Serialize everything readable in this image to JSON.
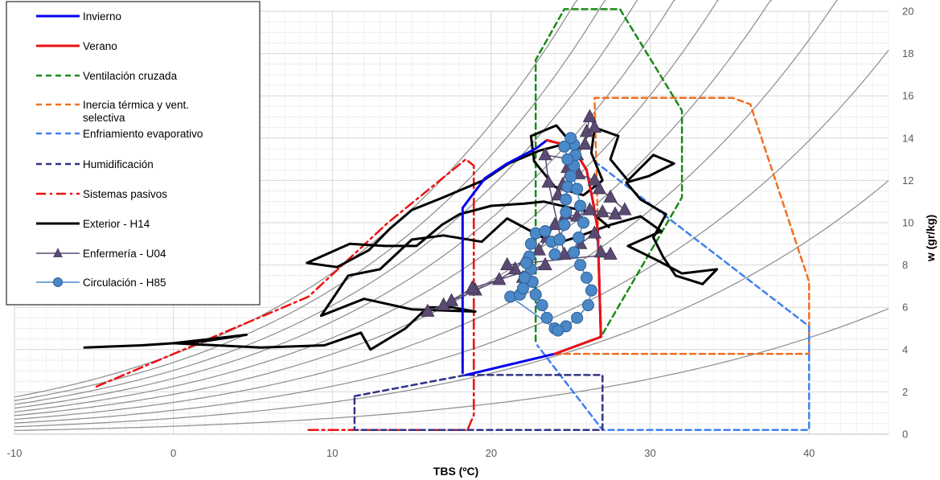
{
  "chart_data": {
    "type": "line",
    "title": "",
    "xlabel": "TBS (ºC)",
    "ylabel": "w (gr/kg)",
    "xlim": [
      -10,
      45
    ],
    "ylim": [
      0,
      20
    ],
    "x_ticks": [
      -10,
      0,
      10,
      20,
      30,
      40
    ],
    "y_ticks": [
      0,
      2,
      4,
      6,
      8,
      10,
      12,
      14,
      16,
      18,
      20
    ],
    "grid": true,
    "legend_position": "top-left",
    "saturation_curves_rh_percent": [
      10,
      20,
      30,
      40,
      50,
      60,
      70,
      80,
      90,
      100
    ],
    "series": [
      {
        "name": "Invierno",
        "color": "#0000ee",
        "style": "solid",
        "points": [
          [
            18.4,
            2.8
          ],
          [
            24,
            3.8
          ],
          [
            26.9,
            4.6
          ],
          [
            26.7,
            9.7
          ],
          [
            26.4,
            11
          ],
          [
            26,
            12.5
          ],
          [
            25.1,
            13.6
          ],
          [
            23.5,
            13.9
          ],
          [
            22.8,
            13.5
          ],
          [
            21,
            12.8
          ],
          [
            19.6,
            12.1
          ],
          [
            18.2,
            10.7
          ],
          [
            18.2,
            2.9
          ]
        ]
      },
      {
        "name": "Verano",
        "color": "#ee1111",
        "style": "solid",
        "points": [
          [
            24,
            3.8
          ],
          [
            26.9,
            4.6
          ],
          [
            26.7,
            9.7
          ],
          [
            26.4,
            11
          ],
          [
            26,
            12.5
          ],
          [
            25.1,
            13.6
          ],
          [
            23.5,
            13.9
          ]
        ]
      },
      {
        "name": "Ventilación cruzada",
        "color": "#1a8a1a",
        "style": "dashed",
        "points": [
          [
            22.8,
            4.4
          ],
          [
            22.8,
            17.7
          ],
          [
            24.6,
            20.1
          ],
          [
            28.1,
            20.1
          ],
          [
            32,
            15.3
          ],
          [
            32,
            11.2
          ],
          [
            26.9,
            4.6
          ]
        ]
      },
      {
        "name": "Inercia térmica y vent. selectiva",
        "color": "#f07020",
        "style": "dashed",
        "points": [
          [
            24,
            3.8
          ],
          [
            40,
            3.8
          ],
          [
            40,
            7.2
          ],
          [
            36.3,
            15.6
          ],
          [
            35.2,
            15.9
          ],
          [
            26.5,
            15.9
          ],
          [
            26.9,
            4.6
          ]
        ]
      },
      {
        "name": "Enfriamiento evaporativo",
        "color": "#4080ee",
        "style": "dashed",
        "points": [
          [
            26.5,
            12.9
          ],
          [
            40,
            5.1
          ],
          [
            40,
            0.2
          ],
          [
            27,
            0.2
          ],
          [
            22.9,
            4.2
          ]
        ]
      },
      {
        "name": "Humidificación",
        "color": "#333388",
        "style": "dashed",
        "points": [
          [
            11.4,
            1.8
          ],
          [
            18.4,
            2.8
          ],
          [
            27,
            2.8
          ],
          [
            27,
            0.2
          ],
          [
            11.4,
            0.2
          ],
          [
            11.4,
            1.8
          ]
        ]
      },
      {
        "name": "Sistemas pasivos",
        "color": "#ee1111",
        "style": "dashdot",
        "points": [
          [
            8.5,
            0.2
          ],
          [
            18.5,
            0.2
          ],
          [
            18.9,
            0.9
          ],
          [
            18.9,
            12.7
          ],
          [
            18.4,
            13
          ],
          [
            13.5,
            10
          ],
          [
            8.5,
            6.5
          ],
          [
            -5,
            2.2
          ]
        ]
      },
      {
        "name": "Exterior - H14",
        "color": "#000000",
        "style": "solid",
        "points": [
          [
            -5.6,
            4.1
          ],
          [
            -2,
            4.2
          ],
          [
            2,
            4.4
          ],
          [
            4.6,
            4.7
          ],
          [
            0,
            4.3
          ],
          [
            5.5,
            4.1
          ],
          [
            9.5,
            4.2
          ],
          [
            11.8,
            4.8
          ],
          [
            12.4,
            4
          ],
          [
            14.6,
            5
          ],
          [
            16,
            6
          ],
          [
            17.5,
            6
          ],
          [
            19,
            5.8
          ],
          [
            15,
            5.9
          ],
          [
            12,
            6.4
          ],
          [
            9.3,
            5.6
          ],
          [
            11,
            7.5
          ],
          [
            13,
            7.8
          ],
          [
            15,
            9.2
          ],
          [
            17,
            9.4
          ],
          [
            19.4,
            9.1
          ],
          [
            21,
            10.2
          ],
          [
            24,
            9
          ],
          [
            25.3,
            9.3
          ],
          [
            27.5,
            9.9
          ],
          [
            29.4,
            10.3
          ],
          [
            30.7,
            9.6
          ],
          [
            28.6,
            8.9
          ],
          [
            30.5,
            8.2
          ],
          [
            32,
            7.6
          ],
          [
            34.2,
            7.8
          ],
          [
            33.3,
            7.1
          ],
          [
            31.6,
            7.5
          ],
          [
            30.8,
            8.4
          ],
          [
            30.2,
            9.3
          ],
          [
            31,
            10.4
          ],
          [
            29.4,
            11.1
          ],
          [
            28.5,
            11.9
          ],
          [
            29.9,
            12.2
          ],
          [
            31.5,
            12.8
          ],
          [
            30.2,
            13.2
          ],
          [
            28.6,
            12
          ],
          [
            27.5,
            13
          ],
          [
            28,
            14.1
          ],
          [
            26.5,
            14.5
          ],
          [
            26.3,
            13.3
          ],
          [
            27,
            12
          ],
          [
            25.8,
            11.3
          ],
          [
            24,
            11.7
          ],
          [
            22.7,
            12.9
          ],
          [
            22.5,
            14.1
          ],
          [
            24.1,
            14.6
          ],
          [
            25,
            13.8
          ],
          [
            23,
            13.4
          ],
          [
            21.1,
            12.8
          ],
          [
            19.5,
            12
          ],
          [
            17,
            11.2
          ],
          [
            15,
            10.6
          ],
          [
            13.6,
            9.7
          ],
          [
            12.3,
            8.7
          ],
          [
            10.3,
            7.9
          ],
          [
            8.4,
            8.1
          ],
          [
            11.1,
            9
          ],
          [
            13.3,
            8.9
          ],
          [
            15.3,
            8.9
          ],
          [
            16.9,
            9.9
          ],
          [
            18,
            10.4
          ],
          [
            20,
            10.8
          ],
          [
            22.1,
            10.9
          ],
          [
            23.3,
            11
          ],
          [
            25,
            10.7
          ],
          [
            26.3,
            10.5
          ],
          [
            27.4,
            9.8
          ]
        ]
      },
      {
        "name": "Enfermería - U04",
        "color": "#5a4a72",
        "style": "markers-triangle",
        "points": [
          [
            16,
            5.8
          ],
          [
            17.5,
            6.3
          ],
          [
            19,
            6.8
          ],
          [
            20.5,
            7.3
          ],
          [
            21.5,
            7.8
          ],
          [
            22.2,
            8.3
          ],
          [
            23,
            8.7
          ],
          [
            23.5,
            9.3
          ],
          [
            24,
            9.9
          ],
          [
            24.7,
            10.4
          ],
          [
            25.4,
            10.3
          ],
          [
            26.2,
            10.6
          ],
          [
            27,
            10.5
          ],
          [
            27.8,
            10.4
          ],
          [
            28.4,
            10.6
          ],
          [
            27.5,
            11.2
          ],
          [
            26.8,
            11.6
          ],
          [
            26.5,
            12
          ],
          [
            25.5,
            12.3
          ],
          [
            24.5,
            11.8
          ],
          [
            24.2,
            11.3
          ],
          [
            24.8,
            12.6
          ],
          [
            25.4,
            13.2
          ],
          [
            25.9,
            13.7
          ],
          [
            26,
            14.3
          ],
          [
            26.2,
            15
          ],
          [
            26.5,
            14.5
          ],
          [
            25,
            13
          ],
          [
            23.4,
            13.2
          ],
          [
            23.6,
            11.9
          ],
          [
            24.6,
            8.5
          ],
          [
            25.6,
            9
          ],
          [
            26.5,
            9.5
          ],
          [
            26.9,
            8.6
          ],
          [
            27.5,
            8.5
          ],
          [
            21,
            8
          ],
          [
            22,
            7.4
          ],
          [
            23.4,
            8
          ],
          [
            18.8,
            6.9
          ],
          [
            17,
            6.1
          ]
        ]
      },
      {
        "name": "Circulación - H85",
        "color": "#4a88c8",
        "style": "markers-circle",
        "points": [
          [
            24,
            5
          ],
          [
            23.5,
            5.5
          ],
          [
            23.2,
            6.1
          ],
          [
            22.8,
            6.6
          ],
          [
            22.6,
            7.2
          ],
          [
            22.5,
            7.8
          ],
          [
            22.4,
            8.4
          ],
          [
            22.5,
            9
          ],
          [
            22.8,
            9.5
          ],
          [
            23.4,
            9.6
          ],
          [
            23.8,
            9.1
          ],
          [
            24,
            8.5
          ],
          [
            24.3,
            9.2
          ],
          [
            24.6,
            9.9
          ],
          [
            24.7,
            10.5
          ],
          [
            24.7,
            11.1
          ],
          [
            24.8,
            11.7
          ],
          [
            25,
            12.2
          ],
          [
            25.2,
            12.7
          ],
          [
            25.3,
            13.2
          ],
          [
            25.2,
            13.7
          ],
          [
            25,
            14
          ],
          [
            24.6,
            13.6
          ],
          [
            24.8,
            13
          ],
          [
            25.4,
            11.6
          ],
          [
            25.6,
            10.8
          ],
          [
            25.8,
            10
          ],
          [
            25.5,
            9.3
          ],
          [
            25.2,
            8.6
          ],
          [
            25.6,
            8
          ],
          [
            26,
            7.4
          ],
          [
            26.3,
            6.8
          ],
          [
            26.1,
            6.1
          ],
          [
            25.4,
            5.5
          ],
          [
            24.7,
            5.1
          ],
          [
            24.2,
            4.9
          ],
          [
            21.2,
            6.5
          ],
          [
            21.8,
            6.6
          ],
          [
            22,
            6.9
          ],
          [
            22.1,
            7.4
          ],
          [
            22.2,
            8.1
          ]
        ]
      }
    ]
  }
}
